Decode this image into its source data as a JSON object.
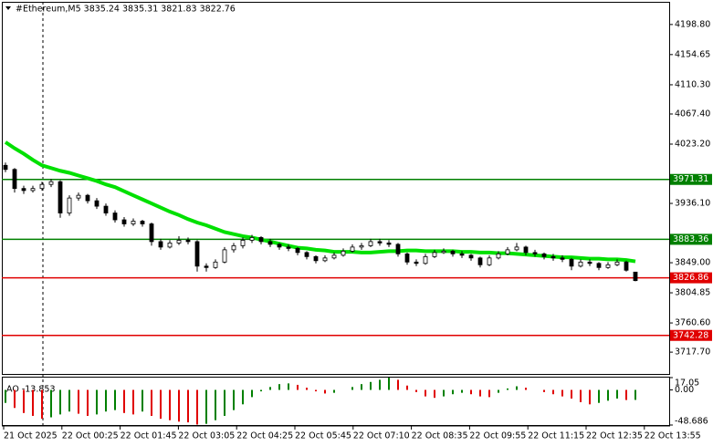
{
  "chart_data": {
    "type": "candlestick",
    "title": "#Ethereum,M5  3835.24 3835.31 3821.83 3822.76",
    "ylim": [
      3685.7,
      4232.1
    ],
    "yticks": [
      {
        "value": 4198.8,
        "label": "4198.80"
      },
      4154.65,
      {
        "value": 4110.3,
        "label": "4110.30"
      },
      {
        "value": 4067.4,
        "label": "4067.40"
      },
      {
        "value": 4023.2,
        "label": "4023.20"
      },
      {
        "value": 3936.1,
        "label": "3936.10"
      },
      {
        "value": 3849,
        "label": "3849.00"
      },
      3804.85,
      {
        "value": 3760.6,
        "label": "3760.60"
      },
      {
        "value": 3717.7,
        "label": "3717.70"
      }
    ],
    "xticks": [
      "21 Oct 2025",
      "22 Oct 00:25",
      "22 Oct 01:45",
      "22 Oct 03:05",
      "22 Oct 04:25",
      "22 Oct 05:45",
      "22 Oct 07:10",
      "22 Oct 08:35",
      "22 Oct 09:55",
      "22 Oct 11:15",
      "22 Oct 12:35",
      "22 Oct 13:55"
    ],
    "up_color": "#ffffff",
    "down_color": "#000000",
    "candles": [
      [
        3992,
        3996,
        3982,
        3986
      ],
      [
        3986,
        3988,
        3952,
        3958
      ],
      [
        3958,
        3962,
        3950,
        3955
      ],
      [
        3955,
        3962,
        3952,
        3958
      ],
      [
        3958,
        3968,
        3955,
        3964
      ],
      [
        3964,
        3972,
        3960,
        3968
      ],
      [
        3968,
        3970,
        3915,
        3922
      ],
      [
        3922,
        3948,
        3918,
        3944
      ],
      [
        3944,
        3952,
        3940,
        3948
      ],
      [
        3948,
        3950,
        3936,
        3940
      ],
      [
        3940,
        3944,
        3928,
        3932
      ],
      [
        3932,
        3936,
        3918,
        3922
      ],
      [
        3922,
        3926,
        3908,
        3912
      ],
      [
        3912,
        3916,
        3902,
        3906
      ],
      [
        3906,
        3914,
        3903,
        3910
      ],
      [
        3910,
        3912,
        3902,
        3906
      ],
      [
        3906,
        3908,
        3874,
        3880
      ],
      [
        3880,
        3884,
        3868,
        3872
      ],
      [
        3872,
        3882,
        3870,
        3878
      ],
      [
        3878,
        3888,
        3875,
        3882
      ],
      [
        3882,
        3886,
        3876,
        3880
      ],
      [
        3880,
        3882,
        3836,
        3844
      ],
      [
        3844,
        3848,
        3836,
        3842
      ],
      [
        3842,
        3854,
        3840,
        3850
      ],
      [
        3850,
        3872,
        3848,
        3868
      ],
      [
        3868,
        3878,
        3864,
        3874
      ],
      [
        3874,
        3886,
        3870,
        3882
      ],
      [
        3882,
        3890,
        3878,
        3886
      ],
      [
        3886,
        3888,
        3876,
        3880
      ],
      [
        3880,
        3884,
        3872,
        3876
      ],
      [
        3876,
        3878,
        3868,
        3872
      ],
      [
        3872,
        3876,
        3866,
        3870
      ],
      [
        3870,
        3872,
        3860,
        3864
      ],
      [
        3864,
        3866,
        3854,
        3858
      ],
      [
        3858,
        3860,
        3848,
        3852
      ],
      [
        3852,
        3860,
        3850,
        3856
      ],
      [
        3856,
        3864,
        3854,
        3860
      ],
      [
        3860,
        3870,
        3858,
        3866
      ],
      [
        3866,
        3876,
        3864,
        3872
      ],
      [
        3872,
        3878,
        3868,
        3874
      ],
      [
        3874,
        3884,
        3872,
        3880
      ],
      [
        3880,
        3884,
        3874,
        3878
      ],
      [
        3878,
        3882,
        3872,
        3876
      ],
      [
        3876,
        3878,
        3858,
        3862
      ],
      [
        3862,
        3864,
        3846,
        3850
      ],
      [
        3850,
        3854,
        3844,
        3848
      ],
      [
        3848,
        3862,
        3846,
        3858
      ],
      [
        3858,
        3868,
        3856,
        3864
      ],
      [
        3864,
        3870,
        3862,
        3866
      ],
      [
        3866,
        3868,
        3858,
        3862
      ],
      [
        3862,
        3866,
        3856,
        3860
      ],
      [
        3860,
        3862,
        3852,
        3856
      ],
      [
        3856,
        3858,
        3842,
        3846
      ],
      [
        3846,
        3860,
        3844,
        3856
      ],
      [
        3856,
        3866,
        3854,
        3862
      ],
      [
        3862,
        3872,
        3860,
        3868
      ],
      [
        3868,
        3878,
        3866,
        3872
      ],
      [
        3872,
        3874,
        3860,
        3864
      ],
      [
        3864,
        3868,
        3858,
        3862
      ],
      [
        3862,
        3864,
        3854,
        3858
      ],
      [
        3858,
        3862,
        3852,
        3856
      ],
      [
        3856,
        3860,
        3850,
        3854
      ],
      [
        3854,
        3856,
        3838,
        3844
      ],
      [
        3844,
        3854,
        3842,
        3850
      ],
      [
        3850,
        3854,
        3844,
        3848
      ],
      [
        3848,
        3850,
        3838,
        3842
      ],
      [
        3842,
        3850,
        3840,
        3846
      ],
      [
        3846,
        3854,
        3844,
        3850
      ],
      [
        3850,
        3852,
        3836,
        3838
      ],
      [
        3835.24,
        3835.31,
        3821.83,
        3822.76
      ]
    ],
    "moving_average": {
      "color": "#00e000",
      "values": [
        4026,
        4017,
        4009,
        4000,
        3992,
        3988,
        3984,
        3981,
        3977,
        3973,
        3969,
        3964,
        3960,
        3954,
        3948,
        3942,
        3936,
        3930,
        3924,
        3919,
        3913,
        3908,
        3904,
        3899,
        3894,
        3891,
        3888,
        3886,
        3883,
        3880,
        3877,
        3874,
        3871,
        3870,
        3868,
        3867,
        3865,
        3865,
        3865,
        3864,
        3864,
        3865,
        3866,
        3866,
        3867,
        3867,
        3866,
        3866,
        3866,
        3866,
        3865,
        3865,
        3864,
        3864,
        3863,
        3863,
        3862,
        3861,
        3860,
        3859,
        3858,
        3857,
        3857,
        3856,
        3855,
        3855,
        3854,
        3854,
        3853,
        3851
      ]
    },
    "levels": [
      {
        "value": 3971.31,
        "color": "#008000"
      },
      {
        "value": 3883.36,
        "color": "#008000"
      },
      {
        "value": 3826.86,
        "color": "#e00000"
      },
      {
        "value": 3742.28,
        "color": "#e00000"
      }
    ],
    "indicator": {
      "label": "AO -13.853",
      "ylim": [
        -48.686,
        17.05
      ],
      "yticks": [
        17.05,
        {
          "value": 0,
          "label": "0.00"
        },
        -48.686
      ],
      "up_color": "#008000",
      "down_color": "#e00000",
      "values": [
        -18,
        -25,
        -32,
        -36,
        -40,
        -38,
        -34,
        -30,
        -33,
        -36,
        -34,
        -30,
        -28,
        -32,
        -34,
        -30,
        -36,
        -40,
        -42,
        -44,
        -45,
        -48,
        -47,
        -42,
        -36,
        -28,
        -20,
        -10,
        -2,
        4,
        8,
        9,
        7,
        3,
        -2,
        -5,
        -4,
        0,
        4,
        8,
        11,
        14,
        17,
        14,
        6,
        -3,
        -9,
        -11,
        -9,
        -6,
        -4,
        -6,
        -9,
        -10,
        -4,
        2,
        5,
        3,
        0,
        -3,
        -6,
        -9,
        -12,
        -17,
        -20,
        -18,
        -15,
        -12,
        -14,
        -13.853
      ]
    }
  }
}
